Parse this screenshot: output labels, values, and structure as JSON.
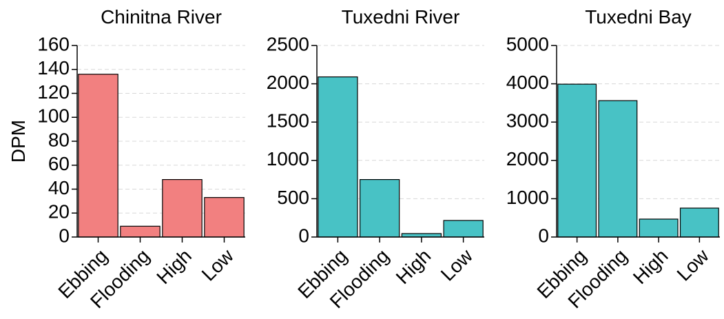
{
  "chart_data": [
    {
      "type": "bar",
      "title": "Chinitna River",
      "ylabel": "DPM",
      "categories": [
        "Ebbing",
        "Flooding",
        "High",
        "Low"
      ],
      "values": [
        136,
        9,
        48,
        33
      ],
      "color": "#f28080",
      "ylim": [
        0,
        160
      ],
      "yticks": [
        0,
        20,
        40,
        60,
        80,
        100,
        120,
        140,
        160
      ],
      "grid": true
    },
    {
      "type": "bar",
      "title": "Tuxedni River",
      "categories": [
        "Ebbing",
        "Flooding",
        "High",
        "Low"
      ],
      "values": [
        2090,
        750,
        45,
        216
      ],
      "color": "#48c2c5",
      "ylim": [
        0,
        2500
      ],
      "yticks": [
        0,
        500,
        1000,
        1500,
        2000,
        2500
      ],
      "grid": true
    },
    {
      "type": "bar",
      "title": "Tuxedni Bay",
      "categories": [
        "Ebbing",
        "Flooding",
        "High",
        "Low"
      ],
      "values": [
        3990,
        3560,
        468,
        755
      ],
      "color": "#48c2c5",
      "ylim": [
        0,
        5000
      ],
      "yticks": [
        0,
        1000,
        2000,
        3000,
        4000,
        5000
      ],
      "grid": true
    }
  ]
}
